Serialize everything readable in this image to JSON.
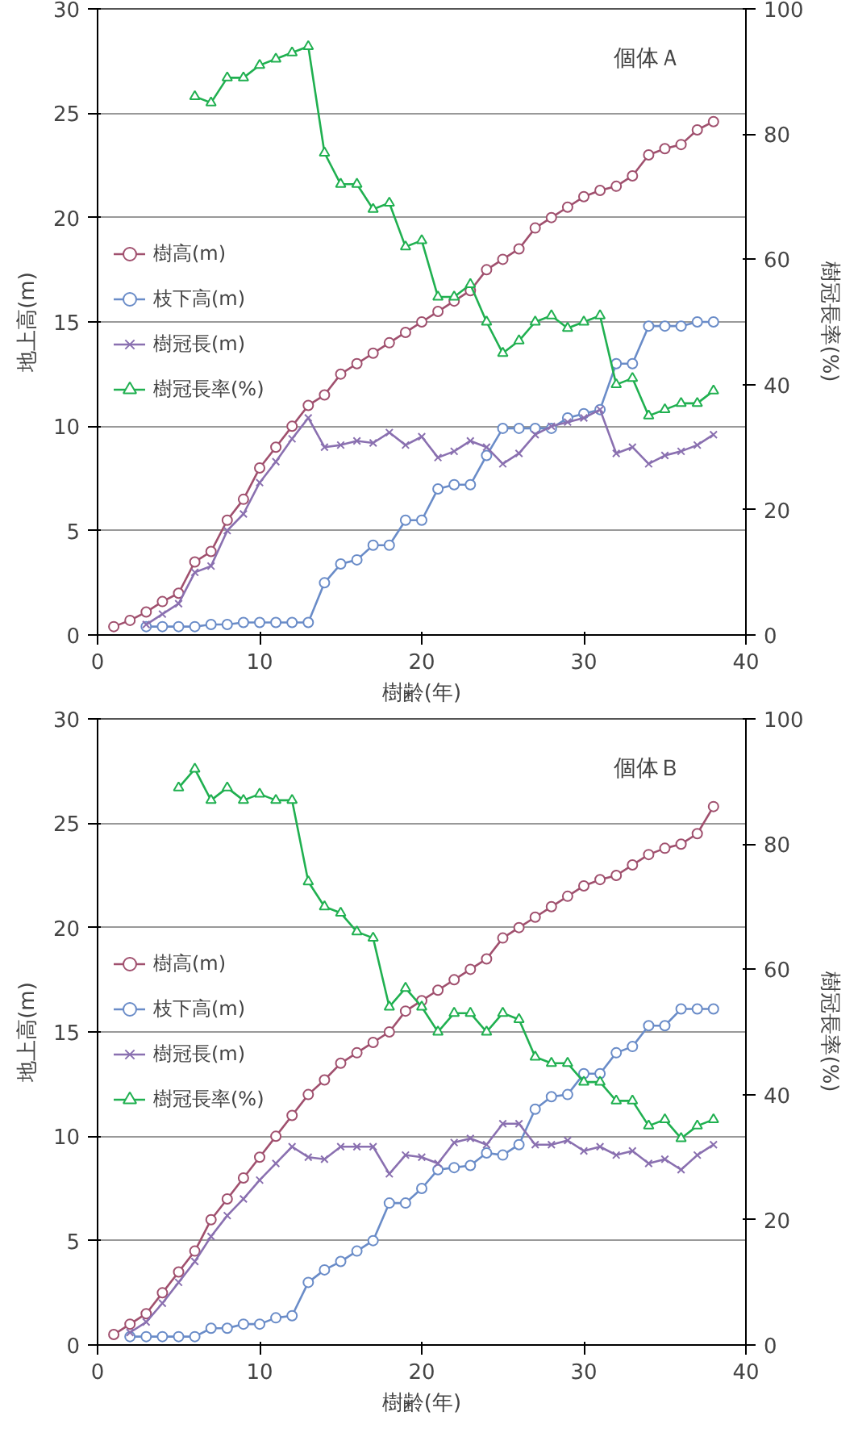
{
  "chart_data": [
    {
      "type": "line",
      "xlabel": "樹齢(年)",
      "ylabel": "地上高(m)",
      "y2label": "樹冠長率(%)",
      "annotations": [
        "個体Ａ"
      ],
      "xlim": [
        0,
        40
      ],
      "xticks": [
        0,
        10,
        20,
        30,
        40
      ],
      "ylim": [
        0,
        30
      ],
      "yticks": [
        0,
        5,
        10,
        15,
        20,
        25,
        30
      ],
      "y2lim": [
        0,
        100
      ],
      "y2ticks": [
        0,
        20,
        40,
        60,
        80,
        100
      ],
      "grid": "y",
      "legend": "left",
      "series": [
        {
          "name": "樹高(m)",
          "color": "#a0506e",
          "marker": "circle",
          "x": [
            1,
            2,
            3,
            4,
            5,
            6,
            7,
            8,
            9,
            10,
            11,
            12,
            13,
            14,
            15,
            16,
            17,
            18,
            19,
            20,
            21,
            22,
            23,
            24,
            25,
            26,
            27,
            28,
            29,
            30,
            31,
            32,
            33,
            34,
            35,
            36,
            37,
            38
          ],
          "values": [
            0.4,
            0.7,
            1.1,
            1.6,
            2.0,
            3.5,
            4.0,
            5.5,
            6.5,
            8.0,
            9.0,
            10.0,
            11.0,
            11.5,
            12.5,
            13.0,
            13.5,
            14.0,
            14.5,
            15.0,
            15.5,
            16.0,
            16.5,
            17.5,
            18.0,
            18.5,
            19.5,
            20.0,
            20.5,
            21.0,
            21.3,
            21.5,
            22.0,
            23.0,
            23.3,
            23.5,
            24.2,
            24.6
          ]
        },
        {
          "name": "枝下高(m)",
          "color": "#6a8cc8",
          "marker": "circle",
          "x": [
            3,
            4,
            5,
            6,
            7,
            8,
            9,
            10,
            11,
            12,
            13,
            14,
            15,
            16,
            17,
            18,
            19,
            20,
            21,
            22,
            23,
            24,
            25,
            26,
            27,
            28,
            29,
            30,
            31,
            32,
            33,
            34,
            35,
            36,
            37,
            38
          ],
          "values": [
            0.4,
            0.4,
            0.4,
            0.4,
            0.5,
            0.5,
            0.6,
            0.6,
            0.6,
            0.6,
            0.6,
            2.5,
            3.4,
            3.6,
            4.3,
            4.3,
            5.5,
            5.5,
            7.0,
            7.2,
            7.2,
            8.6,
            9.9,
            9.9,
            9.9,
            9.9,
            10.4,
            10.6,
            10.8,
            13.0,
            13.0,
            14.8,
            14.8,
            14.8,
            15.0,
            15.0
          ]
        },
        {
          "name": "樹冠長(m)",
          "color": "#8a70b0",
          "marker": "cross",
          "x": [
            3,
            4,
            5,
            6,
            7,
            8,
            9,
            10,
            11,
            12,
            13,
            14,
            15,
            16,
            17,
            18,
            19,
            20,
            21,
            22,
            23,
            24,
            25,
            26,
            27,
            28,
            29,
            30,
            31,
            32,
            33,
            34,
            35,
            36,
            37,
            38
          ],
          "values": [
            0.5,
            1.0,
            1.5,
            3.0,
            3.3,
            5.0,
            5.8,
            7.3,
            8.3,
            9.4,
            10.4,
            9.0,
            9.1,
            9.3,
            9.2,
            9.7,
            9.1,
            9.5,
            8.5,
            8.8,
            9.3,
            9.0,
            8.2,
            8.7,
            9.6,
            10.0,
            10.2,
            10.4,
            10.8,
            8.7,
            9.0,
            8.2,
            8.6,
            8.8,
            9.1,
            9.6
          ]
        },
        {
          "name": "樹冠長率(%)",
          "color": "#20b050",
          "marker": "triangle",
          "axis": "y2",
          "x": [
            6,
            7,
            8,
            9,
            10,
            11,
            12,
            13,
            14,
            15,
            16,
            17,
            18,
            19,
            20,
            21,
            22,
            23,
            24,
            25,
            26,
            27,
            28,
            29,
            30,
            31,
            32,
            33,
            34,
            35,
            36,
            37,
            38
          ],
          "values": [
            86,
            85,
            89,
            89,
            91,
            92,
            93,
            94,
            77,
            72,
            72,
            68,
            69,
            62,
            63,
            54,
            54,
            56,
            50,
            45,
            47,
            50,
            51,
            49,
            50,
            51,
            40,
            41,
            35,
            36,
            37,
            37,
            39
          ]
        }
      ]
    },
    {
      "type": "line",
      "xlabel": "樹齢(年)",
      "ylabel": "地上高(m)",
      "y2label": "樹冠長率(%)",
      "annotations": [
        "個体Ｂ"
      ],
      "xlim": [
        0,
        40
      ],
      "xticks": [
        0,
        10,
        20,
        30,
        40
      ],
      "ylim": [
        0,
        30
      ],
      "yticks": [
        0,
        5,
        10,
        15,
        20,
        25,
        30
      ],
      "y2lim": [
        0,
        100
      ],
      "y2ticks": [
        0,
        20,
        40,
        60,
        80,
        100
      ],
      "grid": "y",
      "legend": "left",
      "series": [
        {
          "name": "樹高(m)",
          "color": "#a0506e",
          "marker": "circle",
          "x": [
            1,
            2,
            3,
            4,
            5,
            6,
            7,
            8,
            9,
            10,
            11,
            12,
            13,
            14,
            15,
            16,
            17,
            18,
            19,
            20,
            21,
            22,
            23,
            24,
            25,
            26,
            27,
            28,
            29,
            30,
            31,
            32,
            33,
            34,
            35,
            36,
            37,
            38
          ],
          "values": [
            0.5,
            1.0,
            1.5,
            2.5,
            3.5,
            4.5,
            6.0,
            7.0,
            8.0,
            9.0,
            10.0,
            11.0,
            12.0,
            12.7,
            13.5,
            14.0,
            14.5,
            15.0,
            16.0,
            16.5,
            17.0,
            17.5,
            18.0,
            18.5,
            19.5,
            20.0,
            20.5,
            21.0,
            21.5,
            22.0,
            22.3,
            22.5,
            23.0,
            23.5,
            23.8,
            24.0,
            24.5,
            25.8
          ]
        },
        {
          "name": "枝下高(m)",
          "color": "#6a8cc8",
          "marker": "circle",
          "x": [
            2,
            3,
            4,
            5,
            6,
            7,
            8,
            9,
            10,
            11,
            12,
            13,
            14,
            15,
            16,
            17,
            18,
            19,
            20,
            21,
            22,
            23,
            24,
            25,
            26,
            27,
            28,
            29,
            30,
            31,
            32,
            33,
            34,
            35,
            36,
            37,
            38
          ],
          "values": [
            0.4,
            0.4,
            0.4,
            0.4,
            0.4,
            0.8,
            0.8,
            1.0,
            1.0,
            1.3,
            1.4,
            3.0,
            3.6,
            4.0,
            4.5,
            5.0,
            6.8,
            6.8,
            7.5,
            8.4,
            8.5,
            8.6,
            9.2,
            9.1,
            9.6,
            11.3,
            11.9,
            12.0,
            13.0,
            13.0,
            14.0,
            14.3,
            15.3,
            15.3,
            16.1,
            16.1,
            16.1
          ]
        },
        {
          "name": "樹冠長(m)",
          "color": "#8a70b0",
          "marker": "cross",
          "x": [
            2,
            3,
            4,
            5,
            6,
            7,
            8,
            9,
            10,
            11,
            12,
            13,
            14,
            15,
            16,
            17,
            18,
            19,
            20,
            21,
            22,
            23,
            24,
            25,
            26,
            27,
            28,
            29,
            30,
            31,
            32,
            33,
            34,
            35,
            36,
            37,
            38
          ],
          "values": [
            0.6,
            1.1,
            2.0,
            3.0,
            4.0,
            5.2,
            6.2,
            7.0,
            7.9,
            8.7,
            9.5,
            9.0,
            8.9,
            9.5,
            9.5,
            9.5,
            8.2,
            9.1,
            9.0,
            8.7,
            9.7,
            9.9,
            9.6,
            10.6,
            10.6,
            9.6,
            9.6,
            9.8,
            9.3,
            9.5,
            9.1,
            9.3,
            8.7,
            8.9,
            8.4,
            9.1,
            9.6
          ]
        },
        {
          "name": "樹冠長率(%)",
          "color": "#20b050",
          "marker": "triangle",
          "axis": "y2",
          "x": [
            5,
            6,
            7,
            8,
            9,
            10,
            11,
            12,
            13,
            14,
            15,
            16,
            17,
            18,
            19,
            20,
            21,
            22,
            23,
            24,
            25,
            26,
            27,
            28,
            29,
            30,
            31,
            32,
            33,
            34,
            35,
            36,
            37,
            38
          ],
          "values": [
            89,
            92,
            87,
            89,
            87,
            88,
            87,
            87,
            74,
            70,
            69,
            66,
            65,
            54,
            57,
            54,
            50,
            53,
            53,
            50,
            53,
            52,
            46,
            45,
            45,
            42,
            42,
            39,
            39,
            35,
            36,
            33,
            35,
            36
          ]
        }
      ]
    }
  ]
}
